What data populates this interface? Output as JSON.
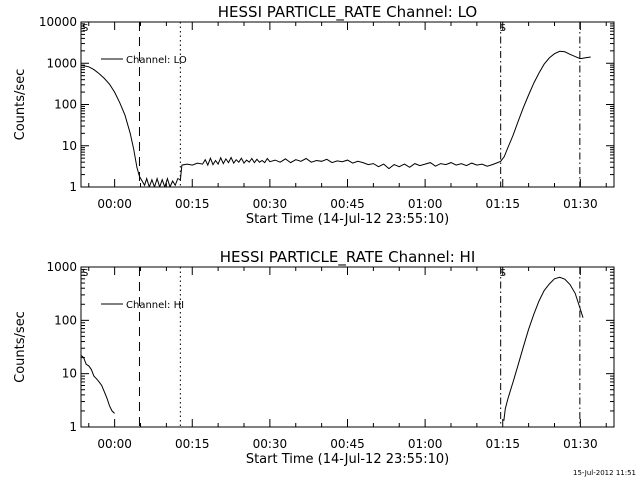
{
  "footer_stamp": "15-Jul-2012 11:51",
  "chart_data": [
    {
      "type": "line",
      "title": "HESSI PARTICLE_RATE Channel: LO",
      "xlabel": "Start Time (14-Jul-12 23:55:10)",
      "ylabel": "Counts/sec",
      "yscale": "log",
      "xlim": [
        -6.5,
        96.5
      ],
      "ylim": [
        1,
        10000
      ],
      "x_ticks": [
        {
          "v": 0,
          "label": "00:00"
        },
        {
          "v": 15,
          "label": "00:15"
        },
        {
          "v": 30,
          "label": "00:30"
        },
        {
          "v": 45,
          "label": "00:45"
        },
        {
          "v": 60,
          "label": "01:00"
        },
        {
          "v": 75,
          "label": "01:15"
        },
        {
          "v": 90,
          "label": "01:30"
        }
      ],
      "y_ticks": [
        {
          "v": 1,
          "label": "1"
        },
        {
          "v": 10,
          "label": "10"
        },
        {
          "v": 100,
          "label": "100"
        },
        {
          "v": 1000,
          "label": "1000"
        },
        {
          "v": 10000,
          "label": "10000"
        }
      ],
      "legend": {
        "text": "Channel: LO",
        "position": "top-left"
      },
      "markers": [
        {
          "x": 4.8,
          "style": "dashed"
        },
        {
          "x": 12.7,
          "style": "dotted"
        },
        {
          "x": 74.6,
          "style": "dashdot",
          "label": "S"
        },
        {
          "x": 89.9,
          "style": "dashdot"
        }
      ],
      "left_marker_label": "S",
      "series": [
        {
          "name": "Channel: LO",
          "points": [
            [
              -6.5,
              900
            ],
            [
              -5,
              820
            ],
            [
              -4,
              700
            ],
            [
              -3,
              560
            ],
            [
              -2,
              430
            ],
            [
              -1,
              310
            ],
            [
              0,
              200
            ],
            [
              1,
              110
            ],
            [
              2,
              55
            ],
            [
              3,
              20
            ],
            [
              3.7,
              8
            ],
            [
              4.3,
              3
            ],
            [
              4.8,
              1.8
            ],
            [
              5.3,
              1.4
            ],
            [
              5.8,
              1.1
            ],
            [
              6.2,
              1.6
            ],
            [
              6.7,
              1
            ],
            [
              7.2,
              1.5
            ],
            [
              7.7,
              1
            ],
            [
              8.2,
              1.6
            ],
            [
              8.7,
              1
            ],
            [
              9.2,
              1.5
            ],
            [
              9.7,
              1
            ],
            [
              10.2,
              1.6
            ],
            [
              10.7,
              1
            ],
            [
              11.2,
              1.4
            ],
            [
              11.7,
              1.1
            ],
            [
              12.2,
              1.6
            ],
            [
              12.7,
              1.5
            ],
            [
              13,
              3.4
            ],
            [
              14,
              3.6
            ],
            [
              15,
              3.4
            ],
            [
              16,
              3.8
            ],
            [
              17,
              3.6
            ],
            [
              17.5,
              4.6
            ],
            [
              18,
              3.4
            ],
            [
              18.5,
              5.0
            ],
            [
              19,
              3.5
            ],
            [
              19.5,
              4.4
            ],
            [
              20,
              3.6
            ],
            [
              20.5,
              5.1
            ],
            [
              21,
              3.7
            ],
            [
              21.5,
              4.8
            ],
            [
              22,
              3.9
            ],
            [
              22.5,
              5.2
            ],
            [
              23,
              3.8
            ],
            [
              23.5,
              4.6
            ],
            [
              24,
              4.0
            ],
            [
              24.5,
              5.0
            ],
            [
              25,
              3.8
            ],
            [
              25.5,
              4.5
            ],
            [
              26,
              4.0
            ],
            [
              26.5,
              4.9
            ],
            [
              27,
              3.9
            ],
            [
              27.5,
              4.7
            ],
            [
              28,
              4.0
            ],
            [
              28.5,
              4.4
            ],
            [
              29,
              3.9
            ],
            [
              29.5,
              4.9
            ],
            [
              30,
              4.1
            ],
            [
              31,
              4.5
            ],
            [
              32,
              4.0
            ],
            [
              33,
              4.8
            ],
            [
              34,
              3.9
            ],
            [
              35,
              4.6
            ],
            [
              36,
              4.2
            ],
            [
              37,
              4.9
            ],
            [
              38,
              4.0
            ],
            [
              39,
              4.4
            ],
            [
              40,
              4.2
            ],
            [
              41,
              4.7
            ],
            [
              42,
              3.9
            ],
            [
              43,
              4.3
            ],
            [
              44,
              4.1
            ],
            [
              45,
              4.5
            ],
            [
              46,
              3.8
            ],
            [
              47,
              4.2
            ],
            [
              48,
              3.9
            ],
            [
              49,
              3.5
            ],
            [
              50,
              3.7
            ],
            [
              51,
              3.1
            ],
            [
              52,
              3.6
            ],
            [
              53,
              2.8
            ],
            [
              54,
              3.5
            ],
            [
              55,
              3.1
            ],
            [
              56,
              3.6
            ],
            [
              57,
              3.0
            ],
            [
              58,
              3.7
            ],
            [
              59,
              3.3
            ],
            [
              60,
              3.6
            ],
            [
              61,
              3.9
            ],
            [
              62,
              3.2
            ],
            [
              63,
              3.7
            ],
            [
              64,
              3.5
            ],
            [
              65,
              3.9
            ],
            [
              66,
              3.4
            ],
            [
              67,
              3.7
            ],
            [
              68,
              3.3
            ],
            [
              69,
              3.8
            ],
            [
              70,
              3.4
            ],
            [
              71,
              3.6
            ],
            [
              72,
              3.2
            ],
            [
              73,
              3.5
            ],
            [
              74,
              3.9
            ],
            [
              74.6,
              4.2
            ],
            [
              75.3,
              5.5
            ],
            [
              76,
              9
            ],
            [
              77,
              18
            ],
            [
              78,
              40
            ],
            [
              79,
              85
            ],
            [
              80,
              170
            ],
            [
              81,
              330
            ],
            [
              82,
              580
            ],
            [
              83,
              950
            ],
            [
              84,
              1350
            ],
            [
              85,
              1700
            ],
            [
              86,
              1950
            ],
            [
              87,
              1900
            ],
            [
              88,
              1650
            ],
            [
              89,
              1450
            ],
            [
              89.9,
              1300
            ],
            [
              90.2,
              1300
            ],
            [
              91,
              1360
            ],
            [
              92,
              1420
            ]
          ]
        }
      ]
    },
    {
      "type": "line",
      "title": "HESSI PARTICLE_RATE Channel: HI",
      "xlabel": "Start Time (14-Jul-12 23:55:10)",
      "ylabel": "Counts/sec",
      "yscale": "log",
      "xlim": [
        -6.5,
        96.5
      ],
      "ylim": [
        1,
        1000
      ],
      "x_ticks": [
        {
          "v": 0,
          "label": "00:00"
        },
        {
          "v": 15,
          "label": "00:15"
        },
        {
          "v": 30,
          "label": "00:30"
        },
        {
          "v": 45,
          "label": "00:45"
        },
        {
          "v": 60,
          "label": "01:00"
        },
        {
          "v": 75,
          "label": "01:15"
        },
        {
          "v": 90,
          "label": "01:30"
        }
      ],
      "y_ticks": [
        {
          "v": 1,
          "label": "1"
        },
        {
          "v": 10,
          "label": "10"
        },
        {
          "v": 100,
          "label": "100"
        },
        {
          "v": 1000,
          "label": "1000"
        }
      ],
      "legend": {
        "text": "Channel: HI",
        "position": "top-left"
      },
      "markers": [
        {
          "x": 4.8,
          "style": "dashed"
        },
        {
          "x": 12.7,
          "style": "dotted"
        },
        {
          "x": 74.6,
          "style": "dashdot",
          "label": "S"
        },
        {
          "x": 89.9,
          "style": "dashdot"
        }
      ],
      "left_marker_label": "S",
      "series": [
        {
          "name": "Channel: HI",
          "points": [
            [
              -6.5,
              22
            ],
            [
              -6,
              20
            ],
            [
              -5.5,
              15
            ],
            [
              -5,
              14
            ],
            [
              -4.5,
              12
            ],
            [
              -4,
              9
            ],
            [
              -3.5,
              8
            ],
            [
              -3,
              7
            ],
            [
              -2.5,
              6
            ],
            [
              -2,
              4.6
            ],
            [
              -1.5,
              3.5
            ],
            [
              -1,
              2.5
            ],
            [
              -0.5,
              2.0
            ],
            [
              0,
              1.8
            ]
          ]
        },
        {
          "name": "Channel: HI",
          "points": [
            [
              75.2,
              1.3
            ],
            [
              75.5,
              2.2
            ],
            [
              76,
              3.4
            ],
            [
              77,
              7
            ],
            [
              78,
              15
            ],
            [
              79,
              32
            ],
            [
              80,
              68
            ],
            [
              81,
              130
            ],
            [
              82,
              230
            ],
            [
              83,
              360
            ],
            [
              84,
              480
            ],
            [
              85,
              600
            ],
            [
              86,
              640
            ],
            [
              87,
              590
            ],
            [
              88,
              470
            ],
            [
              89,
              320
            ],
            [
              90,
              160
            ],
            [
              90.5,
              112
            ]
          ]
        }
      ]
    }
  ]
}
